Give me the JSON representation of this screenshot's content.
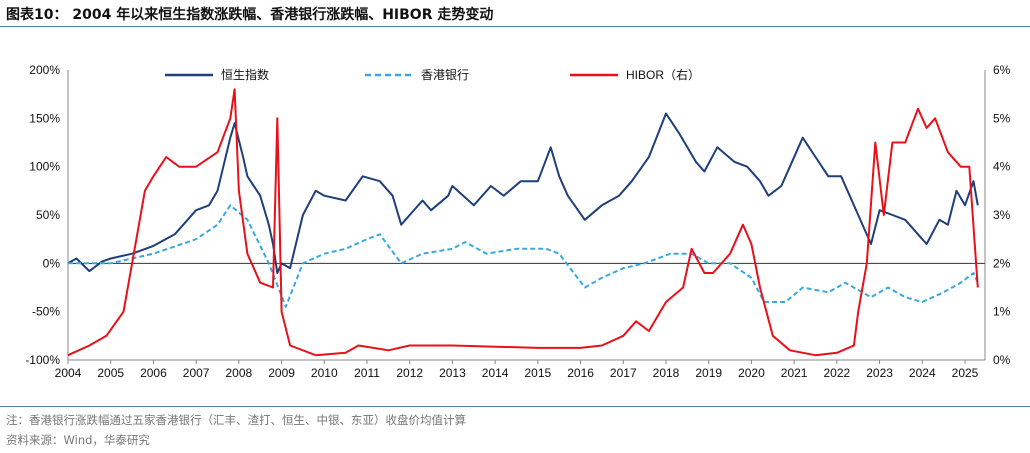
{
  "title": "图表10：  2004 年以来恒生指数涨跌幅、香港银行涨跌幅、HIBOR 走势变动",
  "notes": {
    "note": "注：香港银行涨跌幅通过五家香港银行（汇丰、渣打、恒生、中银、东亚）收盘价均值计算",
    "source": "资料来源：Wind，华泰研究"
  },
  "chart_data": {
    "type": "line",
    "xlim": [
      2004,
      2025.4
    ],
    "xticks": [
      "2004",
      "2005",
      "2006",
      "2007",
      "2008",
      "2009",
      "2010",
      "2011",
      "2012",
      "2013",
      "2014",
      "2015",
      "2016",
      "2017",
      "2018",
      "2019",
      "2020",
      "2021",
      "2022",
      "2023",
      "2024",
      "2025"
    ],
    "ylim_left": [
      -100,
      200
    ],
    "yticks_left": [
      "-100%",
      "-50%",
      "0%",
      "50%",
      "100%",
      "150%",
      "200%"
    ],
    "ylim_right": [
      0,
      6
    ],
    "yticks_right": [
      "0%",
      "1%",
      "2%",
      "3%",
      "4%",
      "5%",
      "6%"
    ],
    "legend_position": "top",
    "series": [
      {
        "name": "恒生指数",
        "axis": "left",
        "color": "#1f3f7a",
        "dash": false,
        "x": [
          2004,
          2004.2,
          2004.5,
          2004.8,
          2005,
          2005.5,
          2006,
          2006.5,
          2007,
          2007.3,
          2007.5,
          2007.8,
          2007.9,
          2008.1,
          2008.2,
          2008.5,
          2008.7,
          2008.8,
          2008.9,
          2009.0,
          2009.2,
          2009.5,
          2009.8,
          2010,
          2010.5,
          2010.9,
          2011.3,
          2011.6,
          2011.8,
          2012,
          2012.3,
          2012.5,
          2012.9,
          2013,
          2013.5,
          2013.9,
          2014.2,
          2014.6,
          2015,
          2015.3,
          2015.5,
          2015.7,
          2016.1,
          2016.5,
          2016.9,
          2017.2,
          2017.6,
          2018.0,
          2018.3,
          2018.7,
          2018.9,
          2019.2,
          2019.6,
          2019.9,
          2020.2,
          2020.4,
          2020.7,
          2020.9,
          2021.2,
          2021.5,
          2021.8,
          2022.1,
          2022.3,
          2022.5,
          2022.8,
          2023.0,
          2023.3,
          2023.6,
          2023.9,
          2024.1,
          2024.4,
          2024.6,
          2024.8,
          2025.0,
          2025.2,
          2025.3
        ],
        "y": [
          0,
          5,
          -8,
          2,
          5,
          10,
          18,
          30,
          55,
          60,
          75,
          130,
          145,
          110,
          90,
          70,
          40,
          20,
          -10,
          0,
          -5,
          50,
          75,
          70,
          65,
          90,
          85,
          70,
          40,
          50,
          65,
          55,
          70,
          80,
          60,
          80,
          70,
          85,
          85,
          120,
          90,
          70,
          45,
          60,
          70,
          85,
          110,
          155,
          135,
          105,
          95,
          120,
          105,
          100,
          85,
          70,
          80,
          100,
          130,
          110,
          90,
          90,
          70,
          50,
          20,
          55,
          50,
          45,
          30,
          20,
          45,
          40,
          75,
          60,
          85,
          60
        ]
      },
      {
        "name": "香港银行",
        "axis": "left",
        "color": "#3aa8e0",
        "dash": true,
        "x": [
          2004,
          2005,
          2006,
          2007,
          2007.5,
          2007.8,
          2008.2,
          2008.7,
          2009.1,
          2009.5,
          2010,
          2010.5,
          2011,
          2011.3,
          2011.8,
          2012.3,
          2013,
          2013.3,
          2013.8,
          2014.5,
          2015.2,
          2015.5,
          2016.1,
          2016.5,
          2017,
          2017.5,
          2018.1,
          2018.6,
          2019,
          2019.5,
          2020.0,
          2020.3,
          2020.8,
          2021.2,
          2021.8,
          2022.2,
          2022.8,
          2023.2,
          2023.6,
          2024.0,
          2024.5,
          2024.9,
          2025.2,
          2025.3
        ],
        "y": [
          0,
          0,
          10,
          25,
          40,
          60,
          45,
          0,
          -45,
          0,
          10,
          15,
          25,
          30,
          0,
          10,
          15,
          22,
          10,
          15,
          15,
          10,
          -25,
          -15,
          -5,
          0,
          10,
          10,
          0,
          0,
          -15,
          -40,
          -40,
          -25,
          -30,
          -20,
          -35,
          -25,
          -35,
          -40,
          -30,
          -20,
          -10,
          -20
        ]
      },
      {
        "name": "HIBOR（右）",
        "axis": "right",
        "color": "#e8111a",
        "dash": false,
        "x": [
          2004,
          2004.5,
          2004.9,
          2005.3,
          2005.5,
          2005.8,
          2006,
          2006.3,
          2006.6,
          2007,
          2007.5,
          2007.8,
          2007.9,
          2008.0,
          2008.2,
          2008.5,
          2008.8,
          2008.9,
          2009.0,
          2009.2,
          2009.8,
          2010.5,
          2010.8,
          2011.5,
          2012,
          2013,
          2015,
          2016,
          2016.5,
          2017,
          2017.3,
          2017.6,
          2018.0,
          2018.4,
          2018.6,
          2018.9,
          2019.1,
          2019.5,
          2019.8,
          2020.0,
          2020.2,
          2020.5,
          2020.9,
          2021.5,
          2022,
          2022.4,
          2022.5,
          2022.7,
          2022.9,
          2023.1,
          2023.3,
          2023.6,
          2023.9,
          2024.1,
          2024.3,
          2024.6,
          2024.9,
          2025.1,
          2025.3
        ],
        "y": [
          0.1,
          0.3,
          0.5,
          1.0,
          2.0,
          3.5,
          3.8,
          4.2,
          4.0,
          4.0,
          4.3,
          5.0,
          5.6,
          3.5,
          2.2,
          1.6,
          1.5,
          5.0,
          1.0,
          0.3,
          0.1,
          0.15,
          0.3,
          0.2,
          0.3,
          0.3,
          0.25,
          0.25,
          0.3,
          0.5,
          0.8,
          0.6,
          1.2,
          1.5,
          2.3,
          1.8,
          1.8,
          2.2,
          2.8,
          2.4,
          1.5,
          0.5,
          0.2,
          0.1,
          0.15,
          0.3,
          1.0,
          2.0,
          4.5,
          3.0,
          4.5,
          4.5,
          5.2,
          4.8,
          5.0,
          4.3,
          4.0,
          4.0,
          1.5
        ]
      }
    ]
  }
}
